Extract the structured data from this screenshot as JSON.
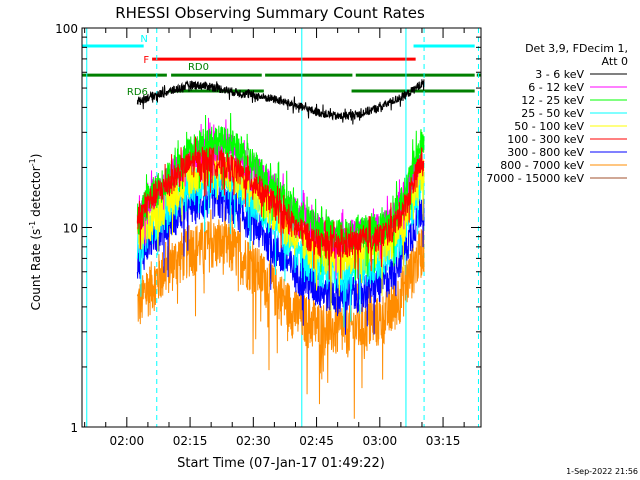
{
  "chart_data": {
    "type": "line",
    "title": "RHESSI Observing Summary Count Rates",
    "xlabel": "Start Time (07-Jan-17 01:49:22)",
    "ylabel": "Count Rate (s",
    "ylabel_sup": "-1",
    "ylabel_tail": " detector",
    "ylabel_sup2": "-1",
    "ylabel_close": ")",
    "y_scale": "log",
    "ylim": [
      1,
      100
    ],
    "y_ticks": [
      {
        "value": 1,
        "label": "1"
      },
      {
        "value": 10,
        "label": "10"
      },
      {
        "value": 100,
        "label": "100"
      }
    ],
    "x_range_minutes": [
      109.37,
      204.0
    ],
    "x_ticks": [
      {
        "minutes": 120,
        "label": "02:00"
      },
      {
        "minutes": 135,
        "label": "02:15"
      },
      {
        "minutes": 150,
        "label": "02:30"
      },
      {
        "minutes": 165,
        "label": "02:45"
      },
      {
        "minutes": 180,
        "label": "03:00"
      },
      {
        "minutes": 195,
        "label": "03:15"
      }
    ],
    "data_start_minutes": 122.5,
    "data_end_minutes": 190.5,
    "legend": {
      "header": [
        "Det 3,9, FDecim 1,",
        "Att 0"
      ],
      "placement": "right"
    },
    "series": [
      {
        "name": "3 - 6 keV",
        "color": "#000000",
        "x": [
          123,
          125,
          130,
          135,
          140,
          145,
          150,
          155,
          160,
          165,
          170,
          175,
          180,
          183,
          186,
          188,
          190
        ],
        "y": [
          43,
          45,
          48,
          52,
          51,
          48,
          46,
          44,
          41,
          38,
          36,
          37,
          40,
          43,
          46,
          49,
          53
        ]
      },
      {
        "name": "6 - 12 keV",
        "color": "#ff00ff",
        "x": [
          123,
          125,
          130,
          135,
          140,
          145,
          150,
          155,
          160,
          165,
          170,
          175,
          180,
          183,
          186,
          188,
          190
        ],
        "y": [
          11,
          14,
          18,
          23,
          26,
          25,
          20,
          16,
          12,
          10,
          9,
          9.5,
          10,
          11,
          15,
          19,
          25
        ]
      },
      {
        "name": "12 - 25 keV",
        "color": "#00ff00",
        "x": [
          123,
          125,
          130,
          135,
          140,
          145,
          150,
          155,
          160,
          165,
          170,
          175,
          180,
          183,
          186,
          188,
          190
        ],
        "y": [
          11,
          14,
          18,
          24,
          28,
          26,
          21,
          16,
          12,
          10,
          9.2,
          9.6,
          10,
          11,
          15,
          20,
          27
        ]
      },
      {
        "name": "25 - 50 keV",
        "color": "#00ffff",
        "x": [
          123,
          125,
          130,
          135,
          140,
          145,
          150,
          155,
          160,
          165,
          170,
          175,
          180,
          183,
          186,
          188,
          190
        ],
        "y": [
          8,
          10,
          13,
          16,
          18,
          17,
          14,
          11,
          8,
          6.5,
          6,
          6.2,
          7,
          8,
          10,
          13,
          17
        ]
      },
      {
        "name": "50 - 100 keV",
        "color": "#ffff00",
        "x": [
          123,
          125,
          130,
          135,
          140,
          145,
          150,
          155,
          160,
          165,
          170,
          175,
          180,
          183,
          186,
          188,
          190
        ],
        "y": [
          9,
          11,
          14,
          18,
          20,
          19,
          16,
          12,
          9,
          7.5,
          7,
          7.2,
          8,
          9,
          11,
          14,
          18
        ]
      },
      {
        "name": "100 - 300 keV",
        "color": "#ff0000",
        "x": [
          123,
          125,
          130,
          135,
          140,
          145,
          150,
          155,
          160,
          165,
          170,
          175,
          180,
          183,
          186,
          188,
          190
        ],
        "y": [
          11,
          13.5,
          17,
          21,
          22,
          20,
          17,
          13,
          10,
          8.5,
          8,
          8.5,
          9,
          10,
          13,
          17,
          22
        ]
      },
      {
        "name": "300 - 800 keV",
        "color": "#0000ff",
        "x": [
          123,
          125,
          130,
          135,
          140,
          145,
          150,
          155,
          160,
          165,
          170,
          175,
          180,
          183,
          186,
          188,
          190
        ],
        "y": [
          7,
          8.5,
          11,
          13,
          14,
          13,
          10.5,
          8,
          6,
          5,
          4.6,
          4.8,
          5.2,
          6,
          8,
          10,
          13
        ]
      },
      {
        "name": "800 - 7000 keV",
        "color": "#ff8c00",
        "x": [
          123,
          125,
          130,
          135,
          140,
          145,
          150,
          155,
          160,
          165,
          170,
          175,
          180,
          183,
          186,
          188,
          190
        ],
        "y": [
          4.2,
          5,
          6.5,
          8,
          8.5,
          8,
          6.5,
          5,
          3.8,
          3.3,
          3.1,
          3.2,
          3.5,
          4,
          5.2,
          6.5,
          8
        ]
      },
      {
        "name": "7000 - 15000 keV",
        "color": "#a0522d",
        "x": [],
        "y": []
      }
    ],
    "flag_bars": [
      {
        "label": "N",
        "color": "#00ffff",
        "y_frac": 0.045,
        "segments": [
          [
            109.37,
            124.0
          ],
          [
            188.0,
            202.5
          ]
        ]
      },
      {
        "label": "F",
        "color": "#ff0000",
        "y_frac": 0.078,
        "segments": [
          [
            126.0,
            188.5
          ]
        ]
      },
      {
        "label": "RD0",
        "color": "#008000",
        "y_frac": 0.118,
        "segments": [
          [
            109.37,
            129.5
          ],
          [
            130.5,
            152.0
          ],
          [
            152.8,
            173.5
          ],
          [
            174.3,
            202.5
          ],
          [
            203.0,
            204.0
          ]
        ]
      },
      {
        "label": "RD6",
        "color": "#008000",
        "y_frac": 0.158,
        "segments": [
          [
            130.0,
            152.5
          ],
          [
            173.3,
            202.5
          ]
        ]
      }
    ],
    "vlines": [
      {
        "minutes": 110.5,
        "color": "#00ffff",
        "style": "solid"
      },
      {
        "minutes": 127.1,
        "color": "#00ffff",
        "style": "dashed"
      },
      {
        "minutes": 161.5,
        "color": "#00ffff",
        "style": "solid"
      },
      {
        "minutes": 186.2,
        "color": "#00ffff",
        "style": "solid"
      },
      {
        "minutes": 190.5,
        "color": "#00ffff",
        "style": "dashed"
      },
      {
        "minutes": 203.4,
        "color": "#00ffff",
        "style": "dashed"
      }
    ],
    "footer_date": "1-Sep-2022 21:56"
  }
}
